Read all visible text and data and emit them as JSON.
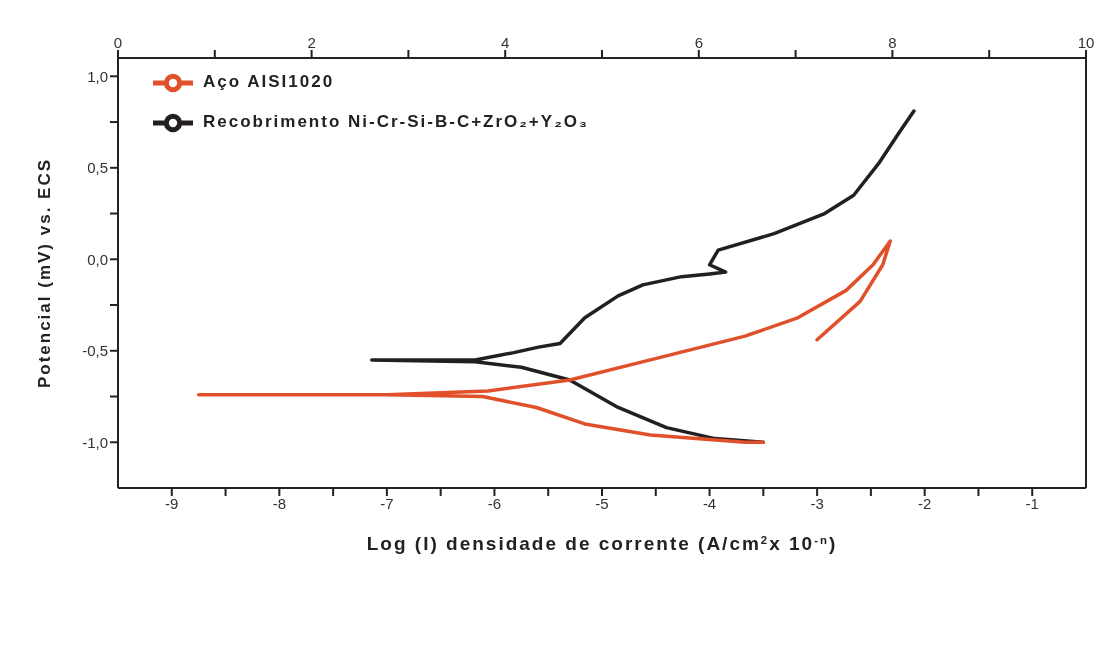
{
  "chart_data": {
    "type": "line",
    "xlabel": "Log (I) densidade de corrente (A/cm$^{2}$x 10$^{-n}$)",
    "ylabel": "Potencial (mV) vs. ECS",
    "xlim": [
      -9.5,
      -0.5
    ],
    "xticks": [
      -9,
      {
        "value": -8.5,
        "label": null
      },
      -8,
      {
        "value": -7.5,
        "label": null
      },
      -7,
      {
        "value": -6.5,
        "label": null
      },
      -6,
      {
        "value": -5.5,
        "label": null
      },
      -5,
      {
        "value": -4.5,
        "label": null
      },
      -4,
      {
        "value": -3.5,
        "label": null
      },
      -3,
      {
        "value": -2.5,
        "label": null
      },
      -2,
      {
        "value": -1.5,
        "label": null
      },
      -1
    ],
    "x2lim": [
      0,
      10
    ],
    "x2ticks": [
      0,
      {
        "value": 1,
        "label": null
      },
      2,
      {
        "value": 3,
        "label": null
      },
      4,
      {
        "value": 5,
        "label": null
      },
      6,
      {
        "value": 7,
        "label": null
      },
      8,
      {
        "value": 9,
        "label": null
      },
      10
    ],
    "ylim": [
      -1.25,
      1.1
    ],
    "yticks": [
      {
        "value": -1,
        "label": "-1,0"
      },
      {
        "value": -0.75,
        "label": null
      },
      {
        "value": -0.5,
        "label": "-0,5"
      },
      {
        "value": -0.25,
        "label": null
      },
      {
        "value": 0,
        "label": "0,0"
      },
      {
        "value": 0.25,
        "label": null
      },
      {
        "value": 0.5,
        "label": "0,5"
      },
      {
        "value": 0.75,
        "label": null
      },
      {
        "value": 1,
        "label": "1,0"
      }
    ],
    "grid": false,
    "legend": "top left",
    "marker": "none",
    "line_style": "solid",
    "series": [
      {
        "name": "Recobrimento Ni-Cr-Si-B-C+ZrO₂+Y₂O₃",
        "color": "#231f20",
        "x": [
          -3.5,
          -3.95,
          -4.4,
          -4.85,
          -5.3,
          -5.75,
          -6.18,
          -7.14,
          -6.18,
          -5.82,
          -5.59,
          -5.39,
          -5.16,
          -4.85,
          -4.62,
          -4.26,
          -4.0,
          -3.85,
          -4.0,
          -3.92,
          -3.4,
          -2.93,
          -2.66,
          -2.42,
          -2.24,
          -2.1
        ],
        "values": [
          -1.0,
          -0.98,
          -0.92,
          -0.81,
          -0.66,
          -0.59,
          -0.56,
          -0.55,
          -0.55,
          -0.51,
          -0.48,
          -0.46,
          -0.32,
          -0.2,
          -0.14,
          -0.095,
          -0.08,
          -0.07,
          -0.03,
          0.05,
          0.14,
          0.25,
          0.35,
          0.53,
          0.69,
          0.81
        ]
      },
      {
        "name": "Aço AISI1020",
        "color": "#e0502a",
        "x": [
          -3.5,
          -3.67,
          -4.55,
          -5.16,
          -5.61,
          -6.11,
          -7.0,
          -8.75,
          -7.0,
          -6.06,
          -5.3,
          -4.55,
          -3.67,
          -3.18,
          -2.73,
          -2.48,
          -2.32,
          -2.39,
          -2.6,
          -3.0
        ],
        "values": [
          -1.0,
          -1.0,
          -0.96,
          -0.9,
          -0.81,
          -0.75,
          -0.74,
          -0.74,
          -0.74,
          -0.72,
          -0.66,
          -0.55,
          -0.42,
          -0.32,
          -0.17,
          -0.03,
          0.1,
          -0.03,
          -0.23,
          -0.44
        ]
      }
    ]
  }
}
